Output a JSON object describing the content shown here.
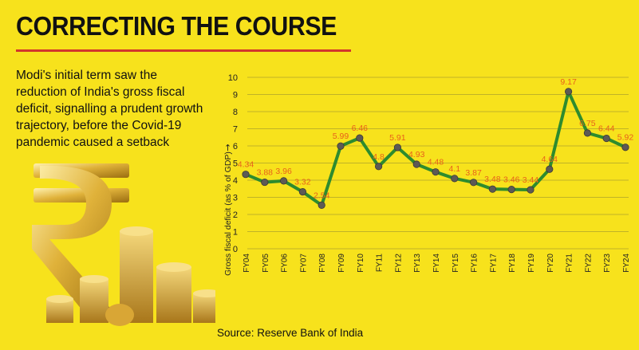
{
  "header": {
    "title": "CORRECTING THE COURSE",
    "description": "Modi's initial term saw the reduction of India's gross fiscal deficit, signalling a prudent growth trajectory, before the Covid-19 pandemic caused a setback",
    "source": "Source: Reserve Bank of India"
  },
  "colors": {
    "background": "#f7e21c",
    "line": "#2e8b2e",
    "marker": "#5d5a55",
    "data_label": "#e8611b",
    "accent_rule": "#d2362b"
  },
  "chart_data": {
    "type": "line",
    "title": "",
    "xlabel": "",
    "ylabel": "Gross fiscal deficit (as % of GDP)",
    "ylim": [
      0,
      10
    ],
    "yticks": [
      0,
      1,
      2,
      3,
      4,
      5,
      6,
      7,
      8,
      9,
      10
    ],
    "grid": true,
    "categories": [
      "FY04",
      "FY05",
      "FY06",
      "FY07",
      "FY08",
      "FY09",
      "FY10",
      "FY11",
      "FY12",
      "FY13",
      "FY14",
      "FY15",
      "FY16",
      "FY17",
      "FY18",
      "FY19",
      "FY20",
      "FY21",
      "FY22",
      "FY23",
      "FY24"
    ],
    "values": [
      4.34,
      3.88,
      3.96,
      3.32,
      2.54,
      5.99,
      6.46,
      4.8,
      5.91,
      4.93,
      4.48,
      4.1,
      3.87,
      3.48,
      3.46,
      3.44,
      4.64,
      9.17,
      6.75,
      6.44,
      5.92
    ],
    "data_labels": [
      "4.34",
      "3.88",
      "3.96",
      "3.32",
      "2.54",
      "5.99",
      "6.46",
      "4.8",
      "5.91",
      "4.93",
      "4.48",
      "4.1",
      "3.87",
      "3.48",
      "3.46",
      "3.44",
      "4.64",
      "9.17",
      "6.75",
      "6.44",
      "5.92"
    ]
  }
}
